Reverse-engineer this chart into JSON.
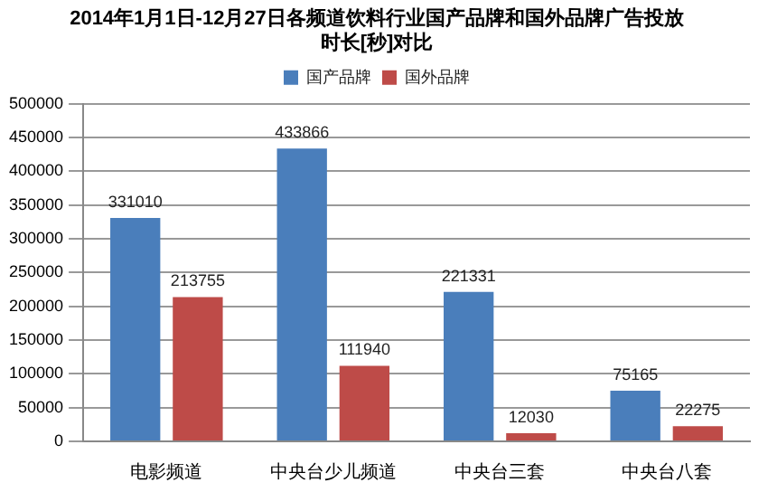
{
  "chart_data": {
    "type": "bar",
    "title": "2014年1月1日-12月27日各频道饮料行业国产品牌和国外品牌广告投放时长[秒]对比",
    "categories": [
      "电影频道",
      "中央台少儿频道",
      "中央台三套",
      "中央台八套"
    ],
    "series": [
      {
        "name": "国产品牌",
        "color": "#4a7ebb",
        "values": [
          331010,
          433866,
          221331,
          75165
        ]
      },
      {
        "name": "国外品牌",
        "color": "#be4b48",
        "values": [
          213755,
          111940,
          12030,
          22275
        ]
      }
    ],
    "ylim": [
      0,
      500000
    ],
    "yticks": [
      0,
      50000,
      100000,
      150000,
      200000,
      250000,
      300000,
      350000,
      400000,
      450000,
      500000
    ],
    "grid": "y",
    "legend": "top",
    "data_labels": true
  }
}
